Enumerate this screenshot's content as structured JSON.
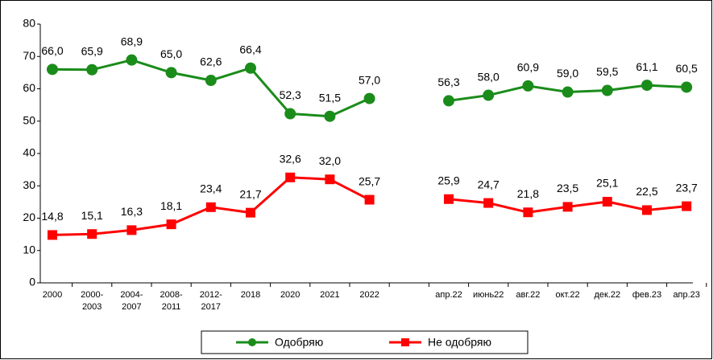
{
  "chart_data": {
    "type": "line",
    "categories": [
      "2000",
      "2000-\n2003",
      "2004-\n2007",
      "2008-\n2011",
      "2012-\n2017",
      "2018",
      "2020",
      "2021",
      "2022",
      null,
      "апр.22",
      "июнь22",
      "авг.22",
      "окт.22",
      "дек.22",
      "фев.23",
      "апр.23"
    ],
    "series": [
      {
        "name": "Одобряю",
        "color": "#1a8c1a",
        "values": [
          66.0,
          65.9,
          68.9,
          65.0,
          62.6,
          66.4,
          52.3,
          51.5,
          57.0,
          null,
          56.3,
          58.0,
          60.9,
          59.0,
          59.5,
          61.1,
          60.5
        ],
        "value_labels": [
          "66,0",
          "65,9",
          "68,9",
          "65,0",
          "62,6",
          "66,4",
          "52,3",
          "51,5",
          "57,0",
          null,
          "56,3",
          "58,0",
          "60,9",
          "59,0",
          "59,5",
          "61,1",
          "60,5"
        ]
      },
      {
        "name": "Не одобряю",
        "color": "#ff0000",
        "values": [
          14.8,
          15.1,
          16.3,
          18.1,
          23.4,
          21.7,
          32.6,
          32.0,
          25.7,
          null,
          25.9,
          24.7,
          21.8,
          23.5,
          25.1,
          22.5,
          23.7
        ],
        "value_labels": [
          "14,8",
          "15,1",
          "16,3",
          "18,1",
          "23,4",
          "21,7",
          "32,6",
          "32,0",
          "25,7",
          null,
          "25,9",
          "24,7",
          "21,8",
          "23,5",
          "25,1",
          "22,5",
          "23,7"
        ]
      }
    ],
    "ylim": [
      0,
      80
    ],
    "yticks": [
      0,
      10,
      20,
      30,
      40,
      50,
      60,
      70,
      80
    ],
    "grid": false,
    "legend": "bottom"
  }
}
